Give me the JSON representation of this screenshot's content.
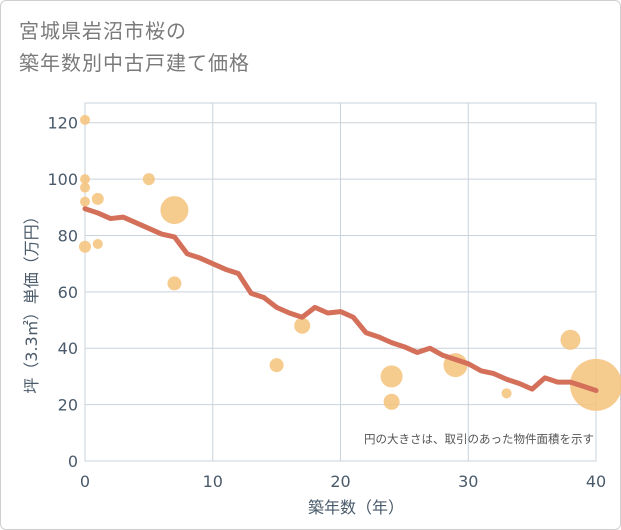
{
  "title": {
    "line1": "宮城県岩沼市桜の",
    "line2": "築年数別中古戸建て価格"
  },
  "note": "円の大きさは、取引のあった物件面積を示す",
  "colors": {
    "line": "#d4705a",
    "bubble": "#f5c27a",
    "grid": "#c9d3dc",
    "plot_bg": "#ffffff",
    "text": "#4a5a6a"
  },
  "chart_data": {
    "type": "scatter",
    "xlabel": "築年数（年）",
    "ylabel": "坪（3.3㎡）単価（万円）",
    "xlim": [
      0,
      40
    ],
    "ylim": [
      0,
      127
    ],
    "xticks": [
      0,
      10,
      20,
      30,
      40
    ],
    "yticks": [
      0,
      20,
      40,
      60,
      80,
      100,
      120
    ],
    "grid": true,
    "trend_line": {
      "x": [
        0,
        1,
        2,
        3,
        4,
        5,
        6,
        7,
        8,
        9,
        10,
        11,
        12,
        13,
        14,
        15,
        16,
        17,
        18,
        19,
        20,
        21,
        22,
        23,
        24,
        25,
        26,
        27,
        28,
        29,
        30,
        31,
        32,
        33,
        34,
        35,
        36,
        37,
        38,
        39,
        40
      ],
      "y": [
        89.5,
        88,
        86,
        86.5,
        84.5,
        82.5,
        80.5,
        79.5,
        73.5,
        72,
        70,
        68,
        66.5,
        59.5,
        58,
        54.5,
        52.5,
        51,
        54.5,
        52.5,
        53,
        51,
        45.5,
        44,
        42,
        40.5,
        38.5,
        40,
        37.5,
        36,
        34.5,
        32,
        31,
        29,
        27.5,
        25.5,
        29.5,
        28,
        28,
        26.5,
        25
      ]
    },
    "bubbles": [
      {
        "x": 0,
        "y": 121,
        "size": 5
      },
      {
        "x": 0,
        "y": 100,
        "size": 5
      },
      {
        "x": 0,
        "y": 97,
        "size": 5
      },
      {
        "x": 0,
        "y": 92,
        "size": 5
      },
      {
        "x": 0,
        "y": 76,
        "size": 6
      },
      {
        "x": 1,
        "y": 93,
        "size": 6
      },
      {
        "x": 1,
        "y": 77,
        "size": 5
      },
      {
        "x": 5,
        "y": 100,
        "size": 6
      },
      {
        "x": 7,
        "y": 89,
        "size": 14
      },
      {
        "x": 7,
        "y": 63,
        "size": 7
      },
      {
        "x": 15,
        "y": 34,
        "size": 7
      },
      {
        "x": 17,
        "y": 48,
        "size": 8
      },
      {
        "x": 24,
        "y": 30,
        "size": 11
      },
      {
        "x": 24,
        "y": 21,
        "size": 8
      },
      {
        "x": 29,
        "y": 34,
        "size": 12
      },
      {
        "x": 33,
        "y": 24,
        "size": 5
      },
      {
        "x": 38,
        "y": 43,
        "size": 10
      },
      {
        "x": 40,
        "y": 27,
        "size": 26
      }
    ]
  }
}
